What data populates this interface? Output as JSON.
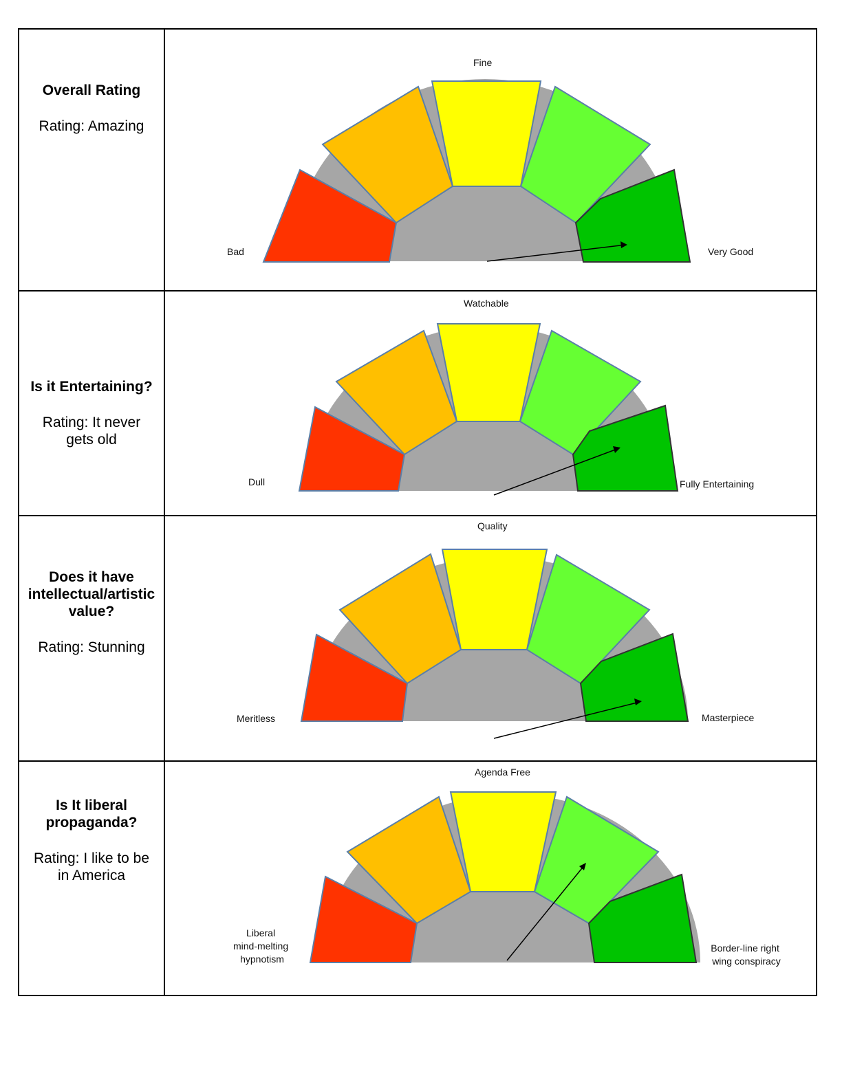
{
  "rows": [
    {
      "title": "Overall Rating",
      "rating": "Rating: Amazing",
      "gauge": {
        "label_left": "Bad",
        "label_top": "Fine",
        "label_right": "Very Good",
        "pointer_segment": 5,
        "segments": [
          "#ff3300",
          "#ffbf00",
          "#ffff00",
          "#66ff33",
          "#00c400"
        ]
      }
    },
    {
      "title": "Is it Entertaining?",
      "rating": "Rating: It never gets old",
      "gauge": {
        "label_left": "Dull",
        "label_top": "Watchable",
        "label_right": "Fully Entertaining",
        "pointer_segment": 5,
        "segments": [
          "#ff3300",
          "#ffbf00",
          "#ffff00",
          "#66ff33",
          "#00c400"
        ]
      }
    },
    {
      "title": "Does it have intellectual/artistic value?",
      "rating": "Rating: Stunning",
      "gauge": {
        "label_left": "Meritless",
        "label_top": "Quality",
        "label_right": "Masterpiece",
        "pointer_segment": 5,
        "segments": [
          "#ff3300",
          "#ffbf00",
          "#ffff00",
          "#66ff33",
          "#00c400"
        ]
      }
    },
    {
      "title": "Is It liberal propaganda?",
      "rating": "Rating: I like to be in America",
      "gauge": {
        "label_left_lines": [
          "Liberal",
          "mind-melting",
          "hypnotism"
        ],
        "label_top": "Agenda Free",
        "label_right_lines": [
          "Border-line right",
          "wing conspiracy"
        ],
        "pointer_segment": 4,
        "segments": [
          "#ff3300",
          "#ffbf00",
          "#ffff00",
          "#66ff33",
          "#00c400"
        ]
      }
    }
  ]
}
